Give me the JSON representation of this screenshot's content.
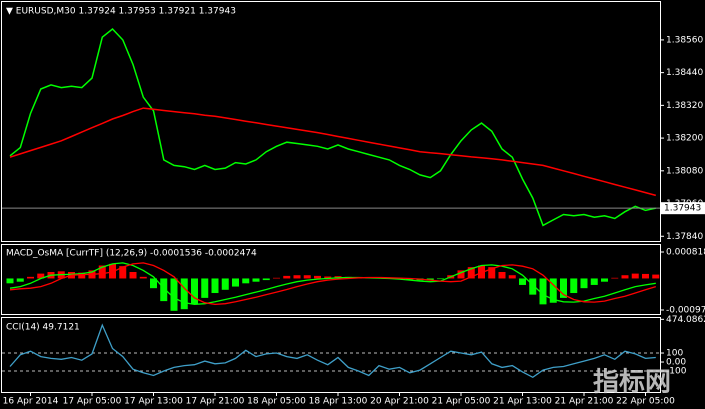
{
  "chart_data": [
    {
      "type": "line",
      "title": "▼ EURUSD,M30 1.37924 1.37953 1.37921 1.37943",
      "ylim": [
        1.37819,
        1.38699
      ],
      "yticks": [
        {
          "value": 1.3856,
          "label": "1.38560"
        },
        {
          "value": 1.3844,
          "label": "1.38440"
        },
        {
          "value": 1.3832,
          "label": "1.38320"
        },
        {
          "value": 1.382,
          "label": "1.38200"
        },
        {
          "value": 1.3808,
          "label": "1.38080"
        },
        {
          "value": 1.3796,
          "label": "1.37960"
        },
        {
          "value": 1.3784,
          "label": "1.37840"
        }
      ],
      "series": [
        {
          "color": "#00ff00",
          "values": [
            1.38135,
            1.38165,
            1.3829,
            1.3838,
            1.38395,
            1.38385,
            1.3839,
            1.38385,
            1.3842,
            1.3857,
            1.386,
            1.3856,
            1.3847,
            1.3835,
            1.383,
            1.3812,
            1.381,
            1.38095,
            1.38085,
            1.381,
            1.38085,
            1.3809,
            1.3811,
            1.38105,
            1.3812,
            1.3815,
            1.3817,
            1.38185,
            1.3818,
            1.38175,
            1.3817,
            1.3816,
            1.38175,
            1.3816,
            1.3815,
            1.3814,
            1.3813,
            1.3812,
            1.381,
            1.38085,
            1.38065,
            1.38055,
            1.3808,
            1.3814,
            1.3819,
            1.3823,
            1.38255,
            1.38225,
            1.3816,
            1.3813,
            1.3805,
            1.3798,
            1.3788,
            1.379,
            1.3792,
            1.37915,
            1.3792,
            1.3791,
            1.37915,
            1.37905,
            1.3793,
            1.3795,
            1.37935,
            1.37943
          ]
        },
        {
          "color": "#ff0000",
          "values": [
            1.3813,
            1.38142,
            1.38154,
            1.38166,
            1.38178,
            1.3819,
            1.38206,
            1.38222,
            1.38238,
            1.38254,
            1.3827,
            1.38283,
            1.38297,
            1.3831,
            1.38306,
            1.38301,
            1.38297,
            1.38293,
            1.38289,
            1.38284,
            1.3828,
            1.38274,
            1.38268,
            1.38262,
            1.38256,
            1.3825,
            1.38244,
            1.38238,
            1.38232,
            1.38226,
            1.3822,
            1.38213,
            1.38206,
            1.38199,
            1.38192,
            1.38185,
            1.38178,
            1.38171,
            1.38164,
            1.38157,
            1.3815,
            1.38146,
            1.38143,
            1.38139,
            1.38135,
            1.38131,
            1.38128,
            1.38124,
            1.3812,
            1.38115,
            1.3811,
            1.38105,
            1.381,
            1.3809,
            1.3808,
            1.3807,
            1.3806,
            1.3805,
            1.3804,
            1.3803,
            1.3802,
            1.3801,
            1.38,
            1.3799
          ]
        }
      ]
    },
    {
      "type": "bar",
      "title": "MACD_OsMA [CurrTF] (12,26,9) -0.0001536 -0.0002474",
      "ylim": [
        -0.001129,
        0.001034
      ],
      "yticks": [
        0.000818,
        -0.000974
      ],
      "positive_color": "#ff0000",
      "negative_color": "#00ff00",
      "values": [
        -0.00015,
        -0.0001,
        5e-05,
        0.00015,
        0.0002,
        0.00022,
        0.0002,
        0.00018,
        0.00025,
        0.0004,
        0.00045,
        0.00038,
        0.0002,
        5e-05,
        -0.0003,
        -0.0007,
        -0.001,
        -0.00095,
        -0.0008,
        -0.0006,
        -0.00045,
        -0.00035,
        -0.00025,
        -0.00015,
        -0.0001,
        -5e-05,
        2e-05,
        8e-05,
        0.0001,
        0.0001,
        8e-05,
        6e-05,
        7e-05,
        5e-05,
        4e-05,
        3e-05,
        2e-05,
        1e-05,
        -2e-05,
        -4e-05,
        -6e-05,
        -6e-05,
        -2e-05,
        0.0001,
        0.00025,
        0.00035,
        0.0004,
        0.00035,
        0.0002,
        0.0001,
        -0.0002,
        -0.0005,
        -0.0008,
        -0.00075,
        -0.0006,
        -0.00045,
        -0.0003,
        -0.0002,
        -0.0001,
        2e-05,
        0.0001,
        0.00015,
        0.00014,
        0.00012
      ],
      "series": [
        {
          "color": "#00ff00",
          "values": [
            -0.0003,
            -0.00025,
            -0.00015,
            0,
            0.0001,
            0.00012,
            0.00013,
            0.00015,
            0.0002,
            0.00035,
            0.00045,
            0.00048,
            0.0004,
            0.00025,
            5e-05,
            -0.0003,
            -0.0006,
            -0.00075,
            -0.0008,
            -0.00078,
            -0.00072,
            -0.00065,
            -0.00058,
            -0.0005,
            -0.00042,
            -0.00034,
            -0.00025,
            -0.00017,
            -0.0001,
            -5e-05,
            -2e-05,
            0,
            2e-05,
            3e-05,
            3e-05,
            2e-05,
            1e-05,
            0,
            -2e-05,
            -5e-05,
            -8e-05,
            -0.0001,
            -8e-05,
            5e-05,
            0.00018,
            0.0003,
            0.0004,
            0.00042,
            0.00038,
            0.0003,
            0.0001,
            -0.0002,
            -0.0005,
            -0.00065,
            -0.00072,
            -0.00073,
            -0.0007,
            -0.00062,
            -0.00055,
            -0.00045,
            -0.00035,
            -0.00025,
            -0.0002,
            -0.00015
          ]
        },
        {
          "color": "#ff0000",
          "values": [
            -0.00035,
            -0.00032,
            -0.0003,
            -0.00025,
            -0.00015,
            0,
            0.0001,
            0.00012,
            0.00013,
            0.00015,
            0.0002,
            0.00035,
            0.00045,
            0.00048,
            0.0004,
            0.00025,
            5e-05,
            -0.0003,
            -0.0006,
            -0.00075,
            -0.0008,
            -0.00078,
            -0.00072,
            -0.00065,
            -0.00058,
            -0.0005,
            -0.00042,
            -0.00034,
            -0.00025,
            -0.00017,
            -0.0001,
            -5e-05,
            -2e-05,
            0,
            2e-05,
            3e-05,
            3e-05,
            2e-05,
            1e-05,
            0,
            -2e-05,
            -5e-05,
            -8e-05,
            -0.0001,
            -8e-05,
            5e-05,
            0.00018,
            0.0003,
            0.0004,
            0.00042,
            0.00038,
            0.0003,
            0.0001,
            -0.0002,
            -0.0005,
            -0.00065,
            -0.00072,
            -0.00073,
            -0.0007,
            -0.00062,
            -0.00055,
            -0.00045,
            -0.00035,
            -0.00025
          ]
        }
      ]
    },
    {
      "type": "line",
      "title": "CCI(14) 49.7121",
      "ylim": [
        -333,
        489
      ],
      "yticks": [
        474.0862,
        100,
        {
          "value": 0,
          "label": "0.00"
        },
        -100
      ],
      "levels": [
        100,
        -100
      ],
      "categories": [
        null,
        null,
        "16 Apr 2014",
        null,
        null,
        null,
        null,
        null,
        "17 Apr 05:00",
        null,
        null,
        null,
        null,
        null,
        "17 Apr 13:00",
        null,
        null,
        null,
        null,
        null,
        "17 Apr 21:00",
        null,
        null,
        null,
        null,
        null,
        "18 Apr 05:00",
        null,
        null,
        null,
        null,
        null,
        "18 Apr 13:00",
        null,
        null,
        null,
        null,
        null,
        "20 Apr 21:00",
        null,
        null,
        null,
        null,
        null,
        "21 Apr 05:00",
        null,
        null,
        null,
        null,
        null,
        "21 Apr 13:00",
        null,
        null,
        null,
        null,
        null,
        "21 Apr 21:00",
        null,
        null,
        null,
        null,
        null,
        "22 Apr 05:00",
        null
      ],
      "series": [
        {
          "color": "#3f9fc8",
          "values": [
            -50,
            80,
            120,
            60,
            40,
            30,
            50,
            20,
            90,
            410,
            150,
            60,
            -80,
            -120,
            -150,
            -100,
            -60,
            -40,
            -30,
            10,
            -20,
            -10,
            40,
            130,
            60,
            90,
            100,
            60,
            40,
            80,
            20,
            -30,
            50,
            -60,
            -100,
            -150,
            -40,
            -80,
            -60,
            -120,
            -90,
            -20,
            50,
            120,
            100,
            80,
            110,
            -20,
            -60,
            -40,
            -110,
            -170,
            -90,
            -60,
            -50,
            -20,
            10,
            40,
            80,
            30,
            120,
            90,
            40,
            49.7121
          ]
        }
      ]
    }
  ],
  "watermark": "指标网"
}
